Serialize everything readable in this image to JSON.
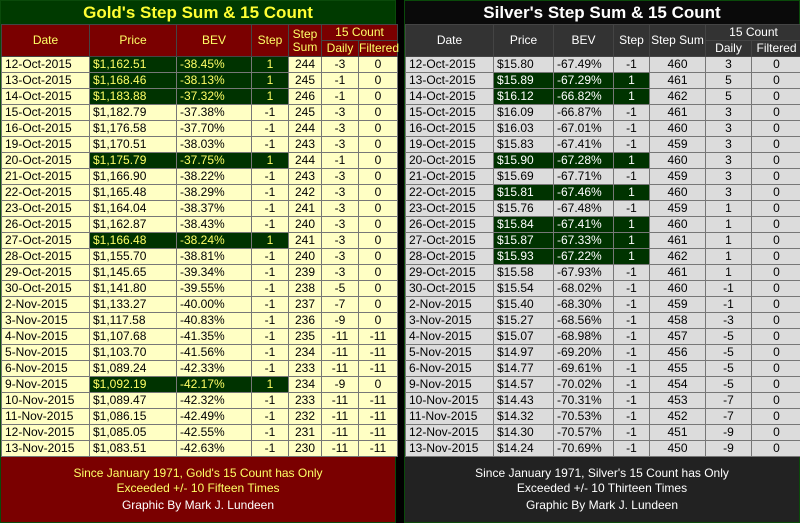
{
  "gold": {
    "title": "Gold's Step Sum & 15 Count",
    "columns": {
      "date": "Date",
      "price": "Price",
      "bev": "BEV",
      "step": "Step",
      "step_sum": "Step Sum",
      "count_group": "15 Count",
      "daily": "Daily",
      "filtered": "Filtered"
    },
    "rows": [
      [
        "12-Oct-2015",
        "$1,162.51",
        "-38.45%",
        1,
        244,
        -3,
        0
      ],
      [
        "13-Oct-2015",
        "$1,168.46",
        "-38.13%",
        1,
        245,
        -1,
        0
      ],
      [
        "14-Oct-2015",
        "$1,183.88",
        "-37.32%",
        1,
        246,
        -1,
        0
      ],
      [
        "15-Oct-2015",
        "$1,182.79",
        "-37.38%",
        -1,
        245,
        -3,
        0
      ],
      [
        "16-Oct-2015",
        "$1,176.58",
        "-37.70%",
        -1,
        244,
        -3,
        0
      ],
      [
        "19-Oct-2015",
        "$1,170.51",
        "-38.03%",
        -1,
        243,
        -3,
        0
      ],
      [
        "20-Oct-2015",
        "$1,175.79",
        "-37.75%",
        1,
        244,
        -1,
        0
      ],
      [
        "21-Oct-2015",
        "$1,166.90",
        "-38.22%",
        -1,
        243,
        -3,
        0
      ],
      [
        "22-Oct-2015",
        "$1,165.48",
        "-38.29%",
        -1,
        242,
        -3,
        0
      ],
      [
        "23-Oct-2015",
        "$1,164.04",
        "-38.37%",
        -1,
        241,
        -3,
        0
      ],
      [
        "26-Oct-2015",
        "$1,162.87",
        "-38.43%",
        -1,
        240,
        -3,
        0
      ],
      [
        "27-Oct-2015",
        "$1,166.48",
        "-38.24%",
        1,
        241,
        -3,
        0
      ],
      [
        "28-Oct-2015",
        "$1,155.70",
        "-38.81%",
        -1,
        240,
        -3,
        0
      ],
      [
        "29-Oct-2015",
        "$1,145.65",
        "-39.34%",
        -1,
        239,
        -3,
        0
      ],
      [
        "30-Oct-2015",
        "$1,141.80",
        "-39.55%",
        -1,
        238,
        -5,
        0
      ],
      [
        "2-Nov-2015",
        "$1,133.27",
        "-40.00%",
        -1,
        237,
        -7,
        0
      ],
      [
        "3-Nov-2015",
        "$1,117.58",
        "-40.83%",
        -1,
        236,
        -9,
        0
      ],
      [
        "4-Nov-2015",
        "$1,107.68",
        "-41.35%",
        -1,
        235,
        -11,
        -11
      ],
      [
        "5-Nov-2015",
        "$1,103.70",
        "-41.56%",
        -1,
        234,
        -11,
        -11
      ],
      [
        "6-Nov-2015",
        "$1,089.24",
        "-42.33%",
        -1,
        233,
        -11,
        -11
      ],
      [
        "9-Nov-2015",
        "$1,092.19",
        "-42.17%",
        1,
        234,
        -9,
        0
      ],
      [
        "10-Nov-2015",
        "$1,089.47",
        "-42.32%",
        -1,
        233,
        -11,
        -11
      ],
      [
        "11-Nov-2015",
        "$1,086.15",
        "-42.49%",
        -1,
        232,
        -11,
        -11
      ],
      [
        "12-Nov-2015",
        "$1,085.05",
        "-42.55%",
        -1,
        231,
        -11,
        -11
      ],
      [
        "13-Nov-2015",
        "$1,083.51",
        "-42.63%",
        -1,
        230,
        -11,
        -11
      ]
    ],
    "footer": [
      "Since January 1971, Gold's 15 Count has Only",
      "Exceeded +/- 10 Fifteen Times"
    ],
    "credit": "Graphic By Mark J. Lundeen"
  },
  "silver": {
    "title": "Silver's Step Sum & 15 Count",
    "columns": {
      "date": "Date",
      "price": "Price",
      "bev": "BEV",
      "step": "Step",
      "step_sum": "Step Sum",
      "count_group": "15 Count",
      "daily": "Daily",
      "filtered": "Filtered"
    },
    "rows": [
      [
        "12-Oct-2015",
        "$15.80",
        "-67.49%",
        -1,
        460,
        3,
        0
      ],
      [
        "13-Oct-2015",
        "$15.89",
        "-67.29%",
        1,
        461,
        5,
        0
      ],
      [
        "14-Oct-2015",
        "$16.12",
        "-66.82%",
        1,
        462,
        5,
        0
      ],
      [
        "15-Oct-2015",
        "$16.09",
        "-66.87%",
        -1,
        461,
        3,
        0
      ],
      [
        "16-Oct-2015",
        "$16.03",
        "-67.01%",
        -1,
        460,
        3,
        0
      ],
      [
        "19-Oct-2015",
        "$15.83",
        "-67.41%",
        -1,
        459,
        3,
        0
      ],
      [
        "20-Oct-2015",
        "$15.90",
        "-67.28%",
        1,
        460,
        3,
        0
      ],
      [
        "21-Oct-2015",
        "$15.69",
        "-67.71%",
        -1,
        459,
        3,
        0
      ],
      [
        "22-Oct-2015",
        "$15.81",
        "-67.46%",
        1,
        460,
        3,
        0
      ],
      [
        "23-Oct-2015",
        "$15.76",
        "-67.48%",
        -1,
        459,
        1,
        0
      ],
      [
        "26-Oct-2015",
        "$15.84",
        "-67.41%",
        1,
        460,
        1,
        0
      ],
      [
        "27-Oct-2015",
        "$15.87",
        "-67.33%",
        1,
        461,
        1,
        0
      ],
      [
        "28-Oct-2015",
        "$15.93",
        "-67.22%",
        1,
        462,
        1,
        0
      ],
      [
        "29-Oct-2015",
        "$15.58",
        "-67.93%",
        -1,
        461,
        1,
        0
      ],
      [
        "30-Oct-2015",
        "$15.54",
        "-68.02%",
        -1,
        460,
        -1,
        0
      ],
      [
        "2-Nov-2015",
        "$15.40",
        "-68.30%",
        -1,
        459,
        -1,
        0
      ],
      [
        "3-Nov-2015",
        "$15.27",
        "-68.56%",
        -1,
        458,
        -3,
        0
      ],
      [
        "4-Nov-2015",
        "$15.07",
        "-68.98%",
        -1,
        457,
        -5,
        0
      ],
      [
        "5-Nov-2015",
        "$14.97",
        "-69.20%",
        -1,
        456,
        -5,
        0
      ],
      [
        "6-Nov-2015",
        "$14.77",
        "-69.61%",
        -1,
        455,
        -5,
        0
      ],
      [
        "9-Nov-2015",
        "$14.57",
        "-70.02%",
        -1,
        454,
        -5,
        0
      ],
      [
        "10-Nov-2015",
        "$14.43",
        "-70.31%",
        -1,
        453,
        -7,
        0
      ],
      [
        "11-Nov-2015",
        "$14.32",
        "-70.53%",
        -1,
        452,
        -7,
        0
      ],
      [
        "12-Nov-2015",
        "$14.30",
        "-70.57%",
        -1,
        451,
        -9,
        0
      ],
      [
        "13-Nov-2015",
        "$14.24",
        "-70.69%",
        -1,
        450,
        -9,
        0
      ]
    ],
    "footer": [
      "Since January 1971, Silver's 15 Count has Only",
      "Exceeded +/- 10 Thirteen Times"
    ],
    "credit": "Graphic By Mark J. Lundeen"
  }
}
